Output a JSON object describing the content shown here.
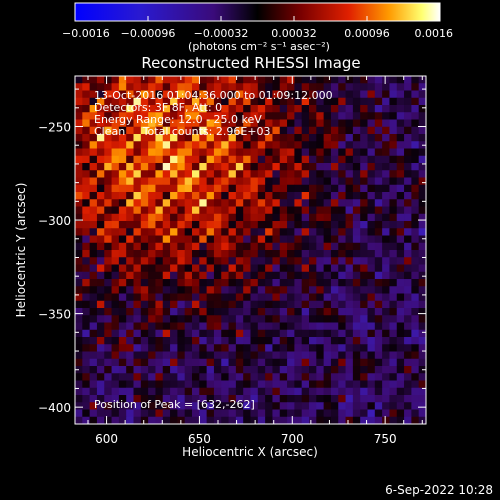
{
  "chart_data": {
    "type": "heatmap",
    "title": "Reconstructed RHESSI Image",
    "xlabel": "Heliocentric X (arcsec)",
    "ylabel": "Heliocentric Y (arcsec)",
    "xlim": [
      583,
      772
    ],
    "ylim": [
      -409,
      -223
    ],
    "xticks": [
      600,
      650,
      700,
      750
    ],
    "xtick_labels": [
      "600",
      "650",
      "700",
      "750"
    ],
    "yticks": [
      -250,
      -300,
      -350,
      -400
    ],
    "ytick_labels": [
      "−250",
      "−300",
      "−350",
      "−400"
    ],
    "colorbar": {
      "range": [
        -0.0016,
        0.0016
      ],
      "ticks": [
        -0.0016,
        -0.00096,
        -0.00032,
        0.00032,
        0.00096,
        0.0016
      ],
      "tick_labels": [
        "−0.0016",
        "−0.00096",
        "−0.00032",
        "0.00032",
        "0.00096",
        "0.0016"
      ],
      "unit_label": "(photons cm⁻² s⁻¹ asec⁻²)",
      "colors": [
        "#0000ff",
        "#3a0b9a",
        "#000000",
        "#7a0000",
        "#e52000",
        "#ff9a00",
        "#ffff66",
        "#ffffff"
      ]
    },
    "annotations": [
      "13-Oct-2016 01:04:36.000 to 01:09:12.000",
      "Detectors: 3F 8F, Att: 0",
      "Energy Range: 12.0 - 25.0 keV",
      "Clean     Total counts: 2.96E+03"
    ],
    "peak_text": "Position of Peak = [632,-262]",
    "peak": [
      632,
      -262
    ],
    "grid": false
  },
  "footer": {
    "timestamp": "6-Sep-2022 10:28"
  }
}
